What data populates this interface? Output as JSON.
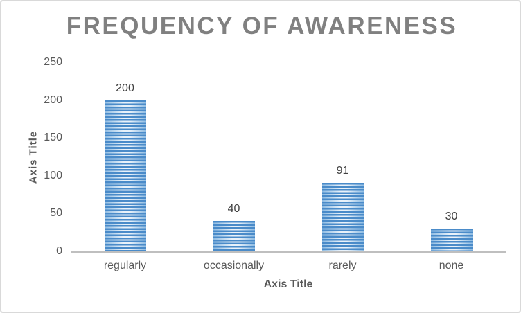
{
  "chart_data": {
    "type": "bar",
    "title": "FREQUENCY OF AWARENESS",
    "xlabel": "Axis Title",
    "ylabel": "Axis Title",
    "categories": [
      "regularly",
      "occasionally",
      "rarely",
      "none"
    ],
    "values": [
      200,
      40,
      91,
      30
    ],
    "data_labels": [
      "200",
      "40",
      "91",
      "30"
    ],
    "ylim": [
      0,
      250
    ],
    "yticks": [
      0,
      50,
      100,
      150,
      200,
      250
    ],
    "grid": "off",
    "legend": "none",
    "colors": {
      "bar_fill": "#5b9bd5",
      "bar_stripe_dark": "#4a8bc9",
      "bar_light": "#e9f2fa",
      "bar_edge": "#8fbce3",
      "title": "#808080",
      "axis_title": "#595959",
      "tick_label": "#595959",
      "value_label": "#404040",
      "axis_line": "#bfbfbf",
      "chart_border": "#d9d9d9",
      "background": "#ffffff"
    }
  }
}
